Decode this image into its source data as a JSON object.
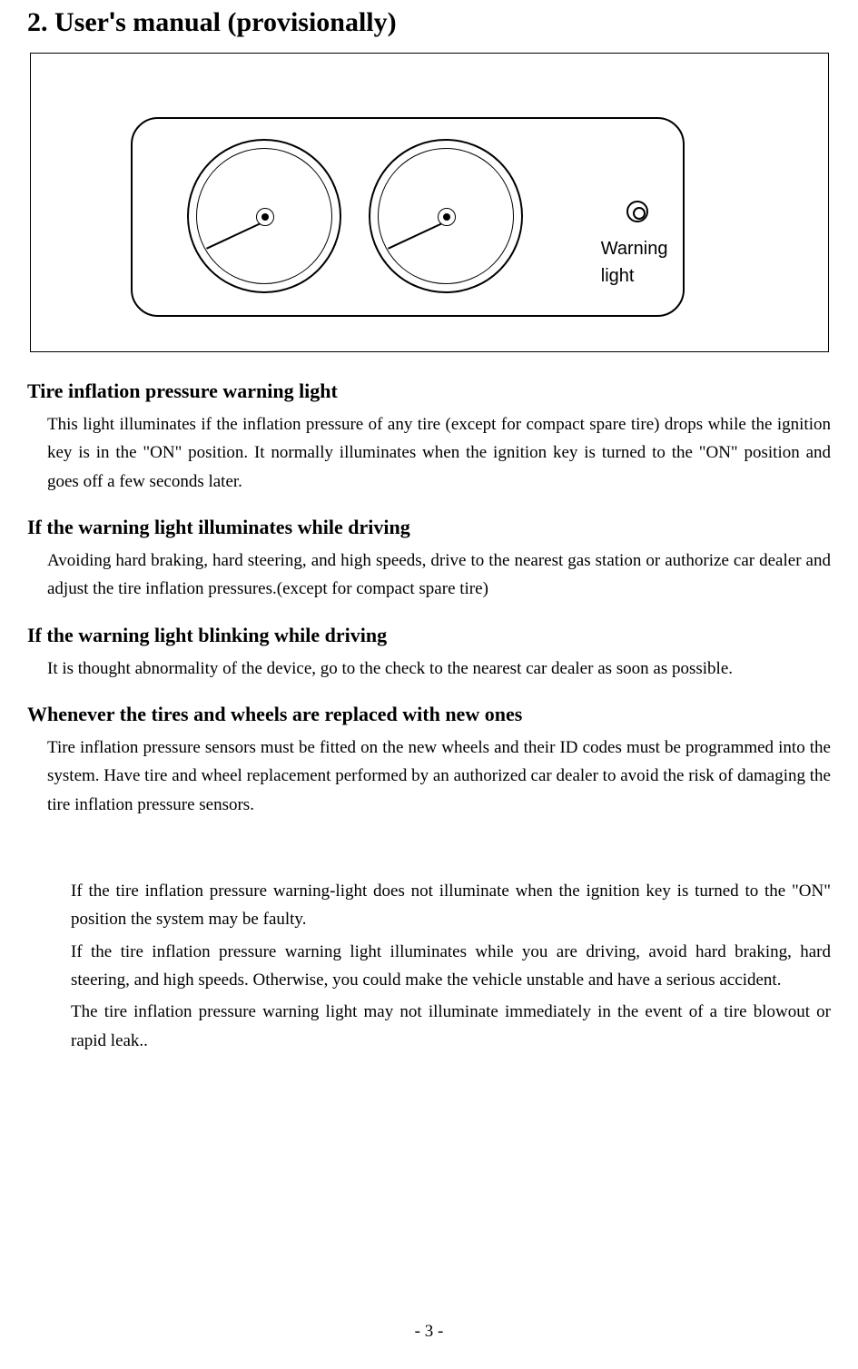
{
  "title": {
    "section_num": "2.",
    "text_before": " User",
    "apostrophe": "'",
    "text_after": "s manual (provisionally)"
  },
  "figure": {
    "warning_label_line1": "Warning",
    "warning_label_line2": "light",
    "caption": "　　　　　 　　　　　"
  },
  "sections": [
    {
      "heading": "Tire inflation pressure warning light",
      "body": "This light illuminates if the inflation pressure of any tire (except for compact spare tire) drops while the ignition key is in the \"ON\" position. It normally illuminates when the ignition key is turned to the \"ON\" position and goes off a few seconds later."
    },
    {
      "heading": "If the warning light illuminates while driving",
      "body": "Avoiding hard braking, hard steering, and high speeds, drive to the nearest gas station or authorize car dealer and adjust the tire inflation pressures.(except for compact spare tire)"
    },
    {
      "heading": "If the warning light blinking while driving",
      "body": "It is thought abnormality of the device, go to the check to the nearest car dealer as soon as possible."
    },
    {
      "heading": "Whenever the tires and wheels are replaced with new ones",
      "body": "Tire inflation pressure sensors must be fitted on the new wheels and their ID codes must be programmed into the system. Have tire and wheel replacement performed by an authorized car dealer to avoid the risk of damaging the tire inflation pressure sensors."
    }
  ],
  "caution": {
    "heading": "　　　　　　",
    "bullet": "　",
    "items": [
      "If the tire inflation pressure warning-light does not illuminate when the ignition key is turned to the \"ON\" position the system may be faulty.",
      "If the tire inflation pressure warning light illuminates while you are driving, avoid hard braking, hard steering, and high speeds. Otherwise, you could make the vehicle unstable and have a serious accident.",
      "The tire inflation pressure warning light may not illuminate immediately in the event of a tire blowout or rapid leak.."
    ]
  },
  "page_number": "- 3 -"
}
